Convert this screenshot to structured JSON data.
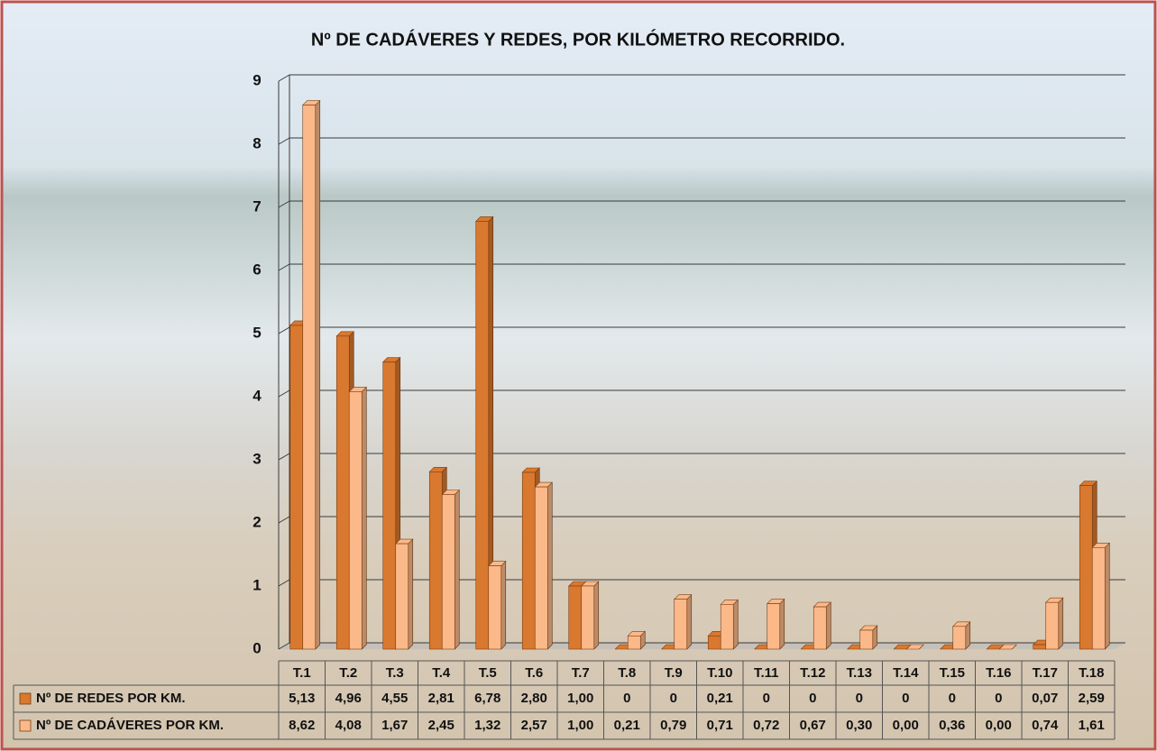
{
  "chart_data": {
    "type": "bar",
    "title": "Nº DE CADÁVERES Y REDES, POR KILÓMETRO RECORRIDO.",
    "categories": [
      "T.1",
      "T.2",
      "T.3",
      "T.4",
      "T.5",
      "T.6",
      "T.7",
      "T.8",
      "T.9",
      "T.10",
      "T.11",
      "T.12",
      "T.13",
      "T.14",
      "T.15",
      "T.16",
      "T.17",
      "T.18"
    ],
    "series": [
      {
        "name": "Nº DE REDES POR KM.",
        "color": "#d9782f",
        "values": [
          5.13,
          4.96,
          4.55,
          2.81,
          6.78,
          2.8,
          1.0,
          0,
          0,
          0.21,
          0,
          0,
          0,
          0,
          0,
          0,
          0.07,
          2.59
        ],
        "value_labels": [
          "5,13",
          "4,96",
          "4,55",
          "2,81",
          "6,78",
          "2,80",
          "1,00",
          "0",
          "0",
          "0,21",
          "0",
          "0",
          "0",
          "0",
          "0",
          "0",
          "0,07",
          "2,59"
        ]
      },
      {
        "name": "Nº DE CADÁVERES POR KM.",
        "color": "#fbb98a",
        "values": [
          8.62,
          4.08,
          1.67,
          2.45,
          1.32,
          2.57,
          1.0,
          0.21,
          0.79,
          0.71,
          0.72,
          0.67,
          0.3,
          0.0,
          0.36,
          0.0,
          0.74,
          1.61
        ],
        "value_labels": [
          "8,62",
          "4,08",
          "1,67",
          "2,45",
          "1,32",
          "2,57",
          "1,00",
          "0,21",
          "0,79",
          "0,71",
          "0,72",
          "0,67",
          "0,30",
          "0,00",
          "0,36",
          "0,00",
          "0,74",
          "1,61"
        ]
      }
    ],
    "ylim": [
      0,
      9
    ],
    "yticks": [
      0,
      1,
      2,
      3,
      4,
      5,
      6,
      7,
      8,
      9
    ],
    "grid": true
  }
}
